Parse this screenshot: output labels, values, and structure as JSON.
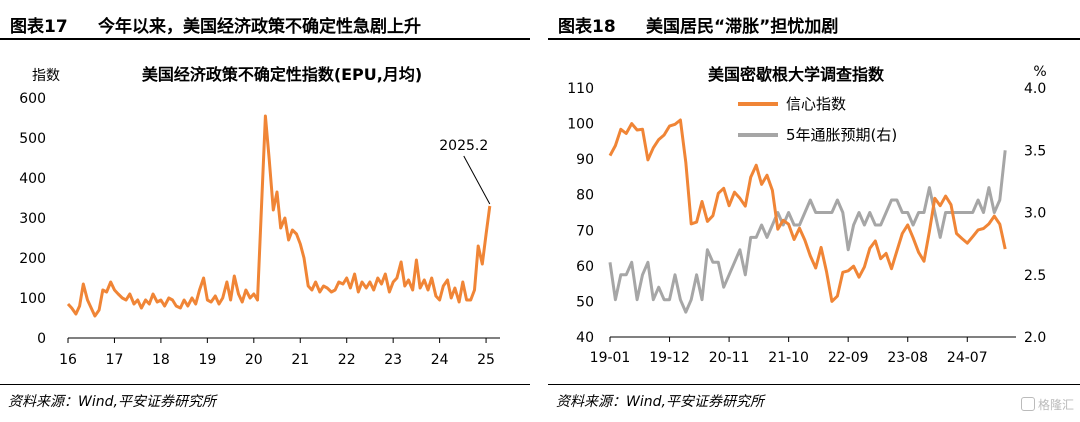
{
  "left": {
    "fig_no": "图表17",
    "fig_title": "今年以来，美国经济政策不确定性急剧上升",
    "source": "资料来源：Wind,平安证券研究所",
    "chart_data": {
      "type": "line",
      "title": "美国经济政策不确定性指数(EPU,月均)",
      "ylabel": "指数",
      "ylim": [
        0,
        600
      ],
      "yticks": [
        "0",
        "100",
        "200",
        "300",
        "400",
        "500",
        "600"
      ],
      "xlim": [
        2016,
        2025.3
      ],
      "xticks": [
        "16",
        "17",
        "18",
        "19",
        "20",
        "21",
        "22",
        "23",
        "24",
        "25"
      ],
      "annotation": {
        "text": "2025.2",
        "x": 2025.08,
        "y": 330
      },
      "series": [
        {
          "color": "#F08536",
          "x": [
            2016.0,
            2016.08,
            2016.17,
            2016.25,
            2016.33,
            2016.42,
            2016.5,
            2016.58,
            2016.67,
            2016.75,
            2016.83,
            2016.92,
            2017.0,
            2017.08,
            2017.17,
            2017.25,
            2017.33,
            2017.42,
            2017.5,
            2017.58,
            2017.67,
            2017.75,
            2017.83,
            2017.92,
            2018.0,
            2018.08,
            2018.17,
            2018.25,
            2018.33,
            2018.42,
            2018.5,
            2018.58,
            2018.67,
            2018.75,
            2018.83,
            2018.92,
            2019.0,
            2019.08,
            2019.17,
            2019.25,
            2019.33,
            2019.42,
            2019.5,
            2019.58,
            2019.67,
            2019.75,
            2019.83,
            2019.92,
            2020.0,
            2020.08,
            2020.17,
            2020.25,
            2020.33,
            2020.42,
            2020.5,
            2020.58,
            2020.67,
            2020.75,
            2020.83,
            2020.92,
            2021.0,
            2021.08,
            2021.17,
            2021.25,
            2021.33,
            2021.42,
            2021.5,
            2021.58,
            2021.67,
            2021.75,
            2021.83,
            2021.92,
            2022.0,
            2022.08,
            2022.17,
            2022.25,
            2022.33,
            2022.42,
            2022.5,
            2022.58,
            2022.67,
            2022.75,
            2022.83,
            2022.92,
            2023.0,
            2023.08,
            2023.17,
            2023.25,
            2023.33,
            2023.42,
            2023.5,
            2023.58,
            2023.67,
            2023.75,
            2023.83,
            2023.92,
            2024.0,
            2024.08,
            2024.17,
            2024.25,
            2024.33,
            2024.42,
            2024.5,
            2024.58,
            2024.67,
            2024.75,
            2024.83,
            2024.92,
            2025.0,
            2025.08
          ],
          "y": [
            85,
            75,
            60,
            80,
            135,
            95,
            75,
            55,
            70,
            120,
            115,
            140,
            120,
            110,
            100,
            95,
            110,
            85,
            95,
            75,
            95,
            85,
            110,
            90,
            95,
            80,
            100,
            95,
            80,
            75,
            95,
            80,
            100,
            85,
            120,
            150,
            95,
            90,
            105,
            85,
            100,
            140,
            95,
            155,
            110,
            90,
            120,
            100,
            110,
            95,
            340,
            555,
            450,
            320,
            365,
            275,
            300,
            245,
            270,
            260,
            235,
            200,
            130,
            120,
            140,
            115,
            130,
            125,
            115,
            120,
            140,
            135,
            150,
            125,
            160,
            115,
            140,
            125,
            140,
            120,
            150,
            135,
            160,
            115,
            140,
            150,
            190,
            130,
            145,
            120,
            195,
            125,
            145,
            120,
            150,
            105,
            95,
            130,
            145,
            100,
            125,
            90,
            140,
            95,
            95,
            120,
            230,
            185,
            260,
            330
          ]
        }
      ]
    }
  },
  "right": {
    "fig_no": "图表18",
    "fig_title": "美国居民“滞胀”担忧加剧",
    "source": "资料来源：Wind,平安证券研究所",
    "chart_data": {
      "type": "line",
      "title": "美国密歇根大学调查指数",
      "ylabel_right": "%",
      "ylim": [
        40,
        110
      ],
      "ylim_right": [
        2.0,
        4.0
      ],
      "yticks": [
        "40",
        "50",
        "60",
        "70",
        "80",
        "90",
        "100",
        "110"
      ],
      "yticks_right": [
        "2.0",
        "2.5",
        "3.0",
        "3.5",
        "4.0"
      ],
      "xlim": [
        0,
        75
      ],
      "xticks": [
        {
          "label": "19-01",
          "pos": 0
        },
        {
          "label": "19-12",
          "pos": 11
        },
        {
          "label": "20-11",
          "pos": 22
        },
        {
          "label": "21-10",
          "pos": 33
        },
        {
          "label": "22-09",
          "pos": 44
        },
        {
          "label": "23-08",
          "pos": 55
        },
        {
          "label": "24-07",
          "pos": 66
        }
      ],
      "legend": "top-center",
      "series": [
        {
          "name": "信心指数",
          "axis": "left",
          "color": "#F08536",
          "y": [
            91,
            93.8,
            98.4,
            97.2,
            100,
            98.2,
            98.4,
            89.8,
            93.2,
            95.5,
            96.8,
            99.3,
            99.8,
            101,
            89.1,
            71.8,
            72.3,
            78.1,
            72.5,
            74.1,
            80.4,
            81.8,
            76.9,
            80.7,
            79,
            76.8,
            84.9,
            88.3,
            82.9,
            85.5,
            81.2,
            70.3,
            72.8,
            71.7,
            67.4,
            70.6,
            67.2,
            62.8,
            59.4,
            65.2,
            58.4,
            50,
            51.5,
            58.2,
            58.6,
            59.9,
            56.8,
            59.7,
            64.9,
            67,
            62,
            63.5,
            59.2,
            64.2,
            69.1,
            71.5,
            67.9,
            63.8,
            61.3,
            69.7,
            79,
            76.9,
            79.6,
            77.2,
            69.1,
            67.7,
            66.4,
            68.2,
            70.1,
            70.5,
            71.8,
            74,
            71.7,
            64.7
          ]
        },
        {
          "name": "5年通胀预期(右)",
          "axis": "right",
          "color": "#A6A6A6",
          "y": [
            2.6,
            2.3,
            2.5,
            2.5,
            2.6,
            2.3,
            2.5,
            2.6,
            2.3,
            2.4,
            2.3,
            2.3,
            2.5,
            2.3,
            2.2,
            2.3,
            2.5,
            2.3,
            2.7,
            2.6,
            2.6,
            2.4,
            2.5,
            2.6,
            2.7,
            2.5,
            2.8,
            2.8,
            2.9,
            2.8,
            2.9,
            3.0,
            2.9,
            3.0,
            2.9,
            2.9,
            3.0,
            3.1,
            3.0,
            3.0,
            3.0,
            3.0,
            3.1,
            3.0,
            2.7,
            2.9,
            3.0,
            2.9,
            3.0,
            2.9,
            2.9,
            3.0,
            3.1,
            3.1,
            3.0,
            3.0,
            2.9,
            3.0,
            3.0,
            3.2,
            3.0,
            2.8,
            3.0,
            3.0,
            3.0,
            3.0,
            3.0,
            3.0,
            3.1,
            3.0,
            3.2,
            3.0,
            3.1,
            3.5
          ]
        }
      ]
    }
  },
  "watermark": "格隆汇"
}
